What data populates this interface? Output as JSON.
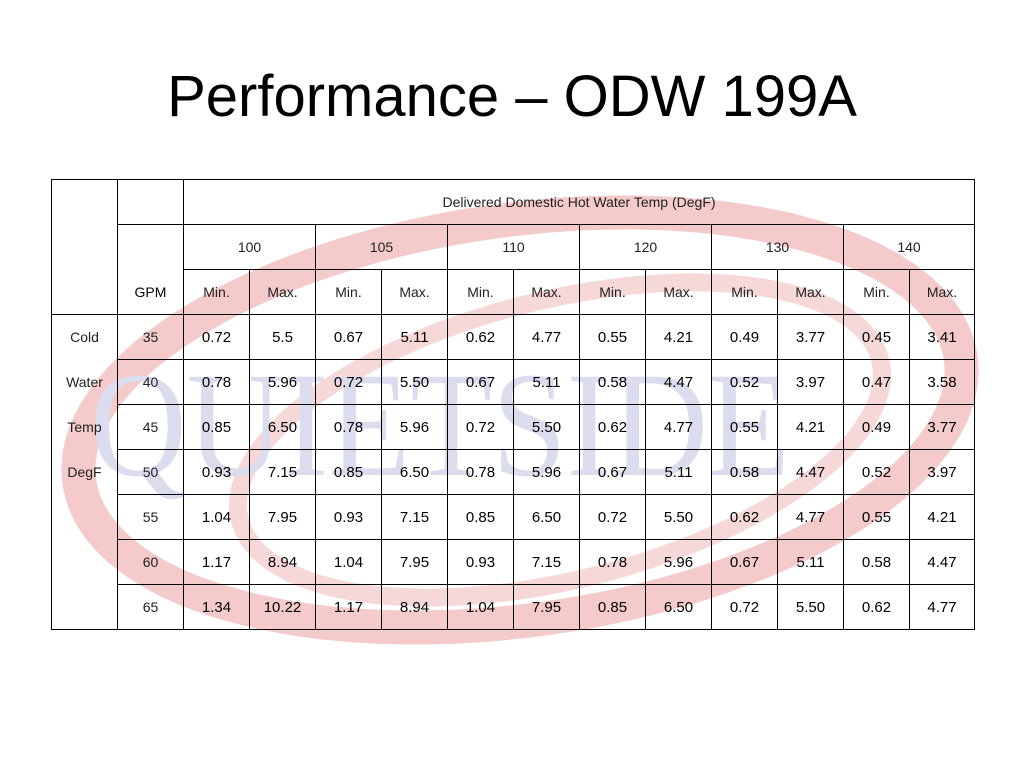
{
  "title": "Performance – ODW 199A",
  "watermark": {
    "text": "QUIETSIDE"
  },
  "table": {
    "group_header": "Delivered Domestic Hot Water Temp (DegF)",
    "gpm_header": "GPM",
    "temps": [
      "100",
      "105",
      "110",
      "120",
      "130",
      "140"
    ],
    "min_label": "Min.",
    "max_label": "Max.",
    "side_labels": [
      "Cold",
      "Water",
      "Temp",
      "DegF"
    ],
    "rows": [
      {
        "gpm": "35",
        "values": [
          "0.72",
          "5.5",
          "0.67",
          "5.11",
          "0.62",
          "4.77",
          "0.55",
          "4.21",
          "0.49",
          "3.77",
          "0.45",
          "3.41"
        ]
      },
      {
        "gpm": "40",
        "values": [
          "0.78",
          "5.96",
          "0.72",
          "5.50",
          "0.67",
          "5.11",
          "0.58",
          "4.47",
          "0.52",
          "3.97",
          "0.47",
          "3.58"
        ]
      },
      {
        "gpm": "45",
        "values": [
          "0.85",
          "6.50",
          "0.78",
          "5.96",
          "0.72",
          "5.50",
          "0.62",
          "4.77",
          "0.55",
          "4.21",
          "0.49",
          "3.77"
        ]
      },
      {
        "gpm": "50",
        "values": [
          "0.93",
          "7.15",
          "0.85",
          "6.50",
          "0.78",
          "5.96",
          "0.67",
          "5.11",
          "0.58",
          "4.47",
          "0.52",
          "3.97"
        ]
      },
      {
        "gpm": "55",
        "values": [
          "1.04",
          "7.95",
          "0.93",
          "7.15",
          "0.85",
          "6.50",
          "0.72",
          "5.50",
          "0.62",
          "4.77",
          "0.55",
          "4.21"
        ]
      },
      {
        "gpm": "60",
        "values": [
          "1.17",
          "8.94",
          "1.04",
          "7.95",
          "0.93",
          "7.15",
          "0.78",
          "5.96",
          "0.67",
          "5.11",
          "0.58",
          "4.47"
        ]
      },
      {
        "gpm": "65",
        "values": [
          "1.34",
          "10.22",
          "1.17",
          "8.94",
          "1.04",
          "7.95",
          "0.85",
          "6.50",
          "0.72",
          "5.50",
          "0.62",
          "4.77"
        ]
      }
    ]
  },
  "colors": {
    "watermark_swoosh": "#f2c6c6",
    "watermark_text": "#dcdcef"
  }
}
